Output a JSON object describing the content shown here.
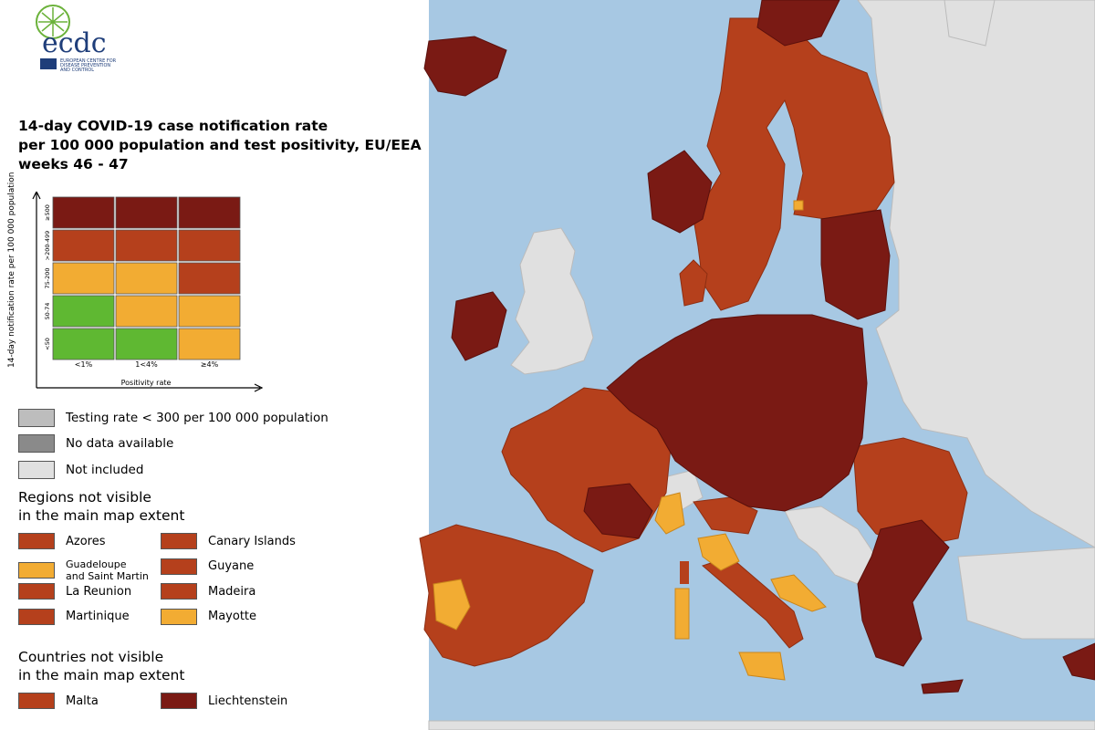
{
  "colors": {
    "sea": "#a7c8e3",
    "dark_red": "#7a1a14",
    "red_orange": "#b5401c",
    "orange": "#f2ac33",
    "green": "#5fb832",
    "gray_testing": "#bdbdbd",
    "gray_nodata": "#8a8a8a",
    "not_included": "#e0e0e0",
    "logo_green": "#6bb23a",
    "logo_blue": "#1f3e7a"
  },
  "logo": {
    "wordmark": "ecdc",
    "org_line1": "EUROPEAN CENTRE FOR",
    "org_line2": "DISEASE PREVENTION",
    "org_line3": "AND CONTROL"
  },
  "title": {
    "line1": "14-day COVID-19 case notification rate",
    "line2": "per 100 000 population and test positivity, EU/EEA",
    "line3": "weeks 46 - 47"
  },
  "matrix": {
    "y_axis_label": "14-day notification rate per 100 000 population",
    "x_axis_label": "Positivity rate",
    "rows": [
      "≥500",
      ">200-499",
      "75-200",
      "50-74",
      "<50"
    ],
    "cols": [
      "<1%",
      "1<4%",
      "≥4%"
    ],
    "cells": [
      [
        "dark_red",
        "dark_red",
        "dark_red"
      ],
      [
        "red_orange",
        "red_orange",
        "red_orange"
      ],
      [
        "orange",
        "orange",
        "red_orange"
      ],
      [
        "green",
        "orange",
        "orange"
      ],
      [
        "green",
        "green",
        "orange"
      ]
    ]
  },
  "legend": {
    "testing": "Testing rate < 300 per 100 000 population",
    "no_data": "No data available",
    "not_included": "Not included"
  },
  "regions": {
    "heading1": "Regions not visible",
    "heading2": "in the main map extent",
    "items": [
      {
        "label": "Azores",
        "color": "red_orange"
      },
      {
        "label": "Canary Islands",
        "color": "red_orange"
      },
      {
        "label": "Guadeloupe and Saint Martin",
        "color": "orange"
      },
      {
        "label": "Guyane",
        "color": "red_orange"
      },
      {
        "label": "La Reunion",
        "color": "red_orange"
      },
      {
        "label": "Madeira",
        "color": "red_orange"
      },
      {
        "label": "Martinique",
        "color": "red_orange"
      },
      {
        "label": "Mayotte",
        "color": "orange"
      }
    ]
  },
  "countries": {
    "heading1": "Countries not visible",
    "heading2": "in the main map extent",
    "items": [
      {
        "label": "Malta",
        "color": "red_orange"
      },
      {
        "label": "Liechtenstein",
        "color": "dark_red"
      }
    ]
  }
}
